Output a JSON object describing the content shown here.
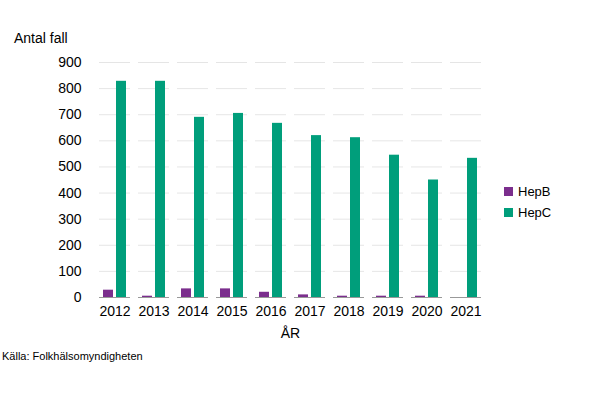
{
  "chart_data": {
    "type": "bar",
    "y_label": "Antal fall",
    "x_label": "ÅR",
    "caption": "Källa: Folkhälsomyndigheten",
    "categories": [
      "2012",
      "2013",
      "2014",
      "2015",
      "2016",
      "2017",
      "2018",
      "2019",
      "2020",
      "2021"
    ],
    "series": [
      {
        "name": "HepB",
        "color": "#7b2e8d",
        "values": [
          28,
          5,
          33,
          33,
          20,
          10,
          5,
          5,
          5,
          0
        ]
      },
      {
        "name": "HepC",
        "color": "#009e7b",
        "values": [
          828,
          828,
          690,
          705,
          667,
          620,
          612,
          545,
          450,
          533
        ]
      }
    ],
    "ylim": [
      0,
      900
    ],
    "yticks": [
      0,
      100,
      200,
      300,
      400,
      500,
      600,
      700,
      800,
      900
    ],
    "grid": true,
    "legend": "right"
  }
}
